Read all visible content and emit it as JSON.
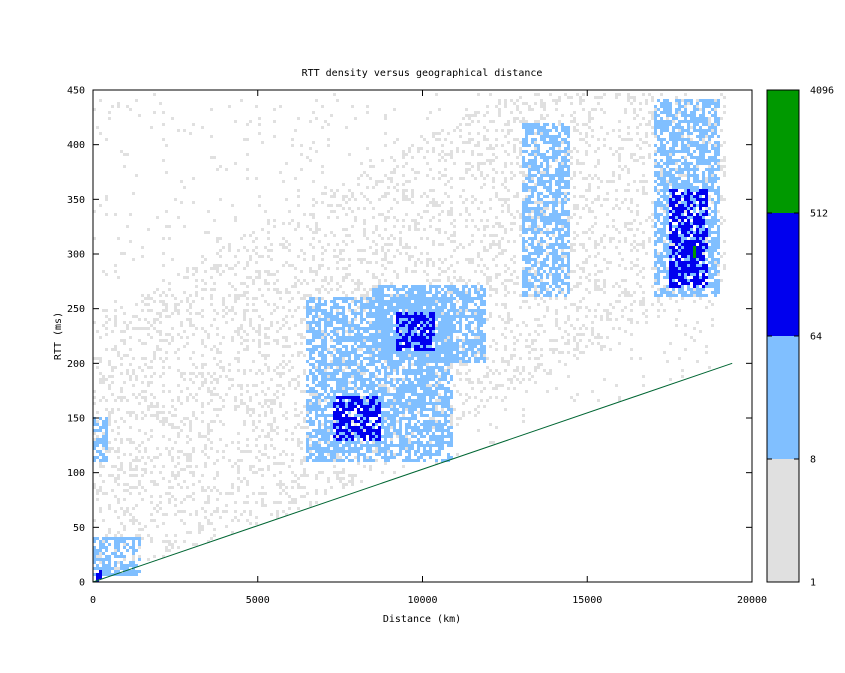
{
  "chart_data": {
    "type": "heatmap",
    "title": "RTT density versus geographical distance",
    "xlabel": "Distance (km)",
    "ylabel": "RTT (ms)",
    "xlim": [
      0,
      20000
    ],
    "ylim": [
      0,
      450
    ],
    "x_ticks": [
      0,
      5000,
      10000,
      15000,
      20000
    ],
    "y_ticks": [
      0,
      50,
      100,
      150,
      200,
      250,
      300,
      350,
      400,
      450
    ],
    "grid": false,
    "colorbar": {
      "scale": "log",
      "ticks": [
        "1",
        "8",
        "64",
        "512",
        "4096"
      ],
      "bands": [
        {
          "from": 1,
          "to": 8,
          "color": "#e0e0e0"
        },
        {
          "from": 8,
          "to": 64,
          "color": "#80bfff"
        },
        {
          "from": 64,
          "to": 512,
          "color": "#0000ee"
        },
        {
          "from": 512,
          "to": 4096,
          "color": "#009900"
        }
      ]
    },
    "reference_line": {
      "color": "#006633",
      "points": [
        [
          0,
          0
        ],
        [
          19400,
          200
        ]
      ]
    },
    "density_regions": [
      {
        "level": 1,
        "x": [
          0,
          19200
        ],
        "y": [
          0,
          450
        ],
        "scatter": true
      },
      {
        "level": 2,
        "x": [
          0,
          500
        ],
        "y": [
          110,
          150
        ]
      },
      {
        "level": 2,
        "x": [
          0,
          1500
        ],
        "y": [
          5,
          40
        ]
      },
      {
        "level": 2,
        "x": [
          6500,
          11000
        ],
        "y": [
          110,
          260
        ]
      },
      {
        "level": 2,
        "x": [
          8500,
          12000
        ],
        "y": [
          200,
          270
        ]
      },
      {
        "level": 2,
        "x": [
          13000,
          14500
        ],
        "y": [
          260,
          420
        ]
      },
      {
        "level": 2,
        "x": [
          17000,
          19000
        ],
        "y": [
          260,
          440
        ]
      },
      {
        "level": 3,
        "x": [
          7300,
          8800
        ],
        "y": [
          130,
          170
        ]
      },
      {
        "level": 3,
        "x": [
          9200,
          10400
        ],
        "y": [
          210,
          245
        ]
      },
      {
        "level": 3,
        "x": [
          17500,
          18700
        ],
        "y": [
          270,
          360
        ]
      },
      {
        "level": 3,
        "x": [
          0,
          300
        ],
        "y": [
          0,
          10
        ]
      },
      {
        "level": 4,
        "x": [
          18200,
          18300
        ],
        "y": [
          295,
          305
        ]
      }
    ]
  }
}
